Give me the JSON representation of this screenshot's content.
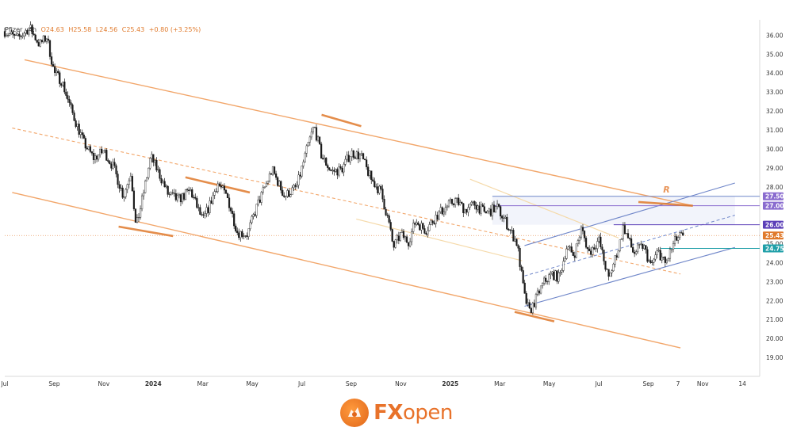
{
  "legend": {
    "symbol": "Pfizer · 4h",
    "open": "O24.63",
    "high": "H25.58",
    "low": "L24.56",
    "close": "C25.43",
    "change": "+0.80 (+3.25%)"
  },
  "brand": {
    "name_fx": "FX",
    "name_open": "open"
  },
  "colors": {
    "channel": "#f2a66a",
    "rising": "#6f86c9",
    "purple": "#8a6ccf",
    "teal": "#1f9fa8",
    "last": "#e07a2c",
    "candle_up": "#1a1a1a",
    "candle_down": "#1a1a1a"
  },
  "chart_data": {
    "type": "candlestick",
    "x_axis": {
      "ticks": [
        "Jul",
        "Sep",
        "Nov",
        "2024",
        "Mar",
        "May",
        "Jul",
        "Sep",
        "Nov",
        "2025",
        "Mar",
        "May",
        "Jul",
        "Sep",
        "7",
        "Nov",
        "14"
      ],
      "tick_months": [
        0,
        2,
        4,
        6,
        8,
        10,
        12,
        14,
        16,
        18,
        20,
        22,
        24,
        26,
        27.2,
        28.2,
        29.8
      ],
      "bold_ticks": [
        "2024",
        "2025"
      ]
    },
    "y_axis": {
      "min": 18,
      "max": 36.6,
      "ticks": [
        "19.00",
        "20.00",
        "21.00",
        "22.00",
        "23.00",
        "24.00",
        "25.00",
        "26.00",
        "27.00",
        "28.00",
        "29.00",
        "30.00",
        "31.00",
        "32.00",
        "33.00",
        "34.00",
        "35.00",
        "36.00"
      ]
    },
    "price_path": {
      "months": [
        0,
        0.5,
        1.0,
        1.4,
        1.7,
        2.0,
        2.3,
        2.7,
        3.2,
        3.6,
        4.0,
        4.4,
        4.8,
        5.1,
        5.3,
        5.5,
        5.9,
        6.3,
        6.6,
        7.0,
        7.5,
        8.0,
        8.3,
        8.6,
        9.0,
        9.4,
        9.8,
        10.2,
        10.8,
        11.3,
        11.8,
        12.3,
        12.5,
        12.8,
        13.2,
        13.6,
        14.0,
        14.4,
        14.8,
        15.2,
        15.5,
        15.7,
        16.0,
        16.3,
        16.6,
        17.0,
        17.4,
        17.8,
        18.2,
        18.6,
        19.0,
        19.4,
        19.9,
        20.3,
        20.7,
        21.0,
        21.2,
        21.4,
        21.6,
        21.8,
        22.1,
        22.4,
        22.7,
        23.0,
        23.3,
        23.6,
        24.0,
        24.4,
        24.8,
        25.0,
        25.4,
        25.8,
        26.1,
        26.4,
        26.7,
        26.9,
        27.1,
        27.3,
        27.4
      ],
      "close": [
        36.2,
        35.8,
        36.4,
        35.5,
        35.9,
        34.0,
        33.6,
        32.0,
        30.3,
        29.5,
        29.9,
        29.0,
        27.5,
        28.8,
        25.8,
        27.0,
        29.6,
        28.5,
        27.6,
        27.3,
        27.8,
        26.2,
        27.1,
        28.2,
        27.4,
        25.6,
        25.5,
        27.0,
        28.9,
        27.5,
        28.0,
        30.4,
        31.2,
        29.6,
        28.8,
        28.9,
        29.8,
        29.6,
        28.4,
        27.7,
        26.2,
        24.8,
        25.5,
        25.1,
        26.2,
        25.7,
        26.4,
        26.9,
        27.3,
        26.8,
        27.1,
        26.6,
        26.9,
        26.0,
        25.0,
        22.2,
        21.4,
        21.9,
        22.5,
        23.0,
        23.4,
        23.2,
        24.8,
        24.4,
        25.8,
        24.5,
        25.2,
        23.1,
        24.8,
        25.9,
        24.5,
        24.9,
        23.8,
        24.6,
        23.9,
        24.6,
        25.2,
        25.4,
        25.43
      ]
    },
    "last_close": 25.43,
    "price_labels": [
      {
        "text": "27.50",
        "value": 27.5,
        "color": "#8a6ccf"
      },
      {
        "text": "27.00",
        "value": 27.0,
        "color": "#8a6ccf"
      },
      {
        "text": "26.00",
        "value": 26.0,
        "color": "#5b3fb8"
      },
      {
        "text": "25.43",
        "value": 25.43,
        "color": "#e07a2c"
      },
      {
        "text": "24.75",
        "value": 24.75,
        "color": "#1f9fa8"
      }
    ],
    "horizontal_levels": [
      {
        "value": 27.5,
        "color": "#6f86c9",
        "from_month": 19.7
      },
      {
        "value": 27.0,
        "color": "#8a6ccf",
        "from_month": 19.7
      },
      {
        "value": 26.0,
        "color": "#5b3fb8",
        "from_month": 24.6
      },
      {
        "value": 24.75,
        "color": "#1f9fa8",
        "from_month": 26.5
      }
    ],
    "channels": {
      "falling_upper": [
        [
          0.8,
          34.7
        ],
        [
          27.8,
          27.0
        ]
      ],
      "falling_mid": [
        [
          0.3,
          31.1
        ],
        [
          27.3,
          23.4
        ]
      ],
      "falling_lower": [
        [
          0.3,
          27.7
        ],
        [
          27.3,
          19.5
        ]
      ],
      "inner_upper": [
        [
          18.8,
          28.4
        ],
        [
          24.8,
          25.3
        ]
      ],
      "inner_lower": [
        [
          14.2,
          26.3
        ],
        [
          20.9,
          24.1
        ]
      ],
      "rising_upper": [
        [
          21.0,
          24.9
        ],
        [
          29.5,
          28.2
        ]
      ],
      "rising_mid": [
        [
          21.0,
          23.3
        ],
        [
          29.5,
          26.5
        ]
      ],
      "rising_lower": [
        [
          21.0,
          21.7
        ],
        [
          29.5,
          24.8
        ]
      ]
    },
    "highlights": [
      [
        [
          4.6,
          25.9
        ],
        [
          6.8,
          25.4
        ]
      ],
      [
        [
          12.8,
          31.8
        ],
        [
          14.4,
          31.2
        ]
      ],
      [
        [
          7.3,
          28.5
        ],
        [
          9.9,
          27.7
        ]
      ],
      [
        [
          20.6,
          21.4
        ],
        [
          22.2,
          20.9
        ]
      ],
      [
        [
          25.6,
          27.2
        ],
        [
          27.8,
          27.0
        ]
      ]
    ],
    "annotations": [
      {
        "text": "R",
        "month": 26.6,
        "value": 27.7
      }
    ],
    "shaded_rect": {
      "from_month": 19.7,
      "to_month": 29.5,
      "top": 27.5,
      "bottom": 26.0
    }
  }
}
